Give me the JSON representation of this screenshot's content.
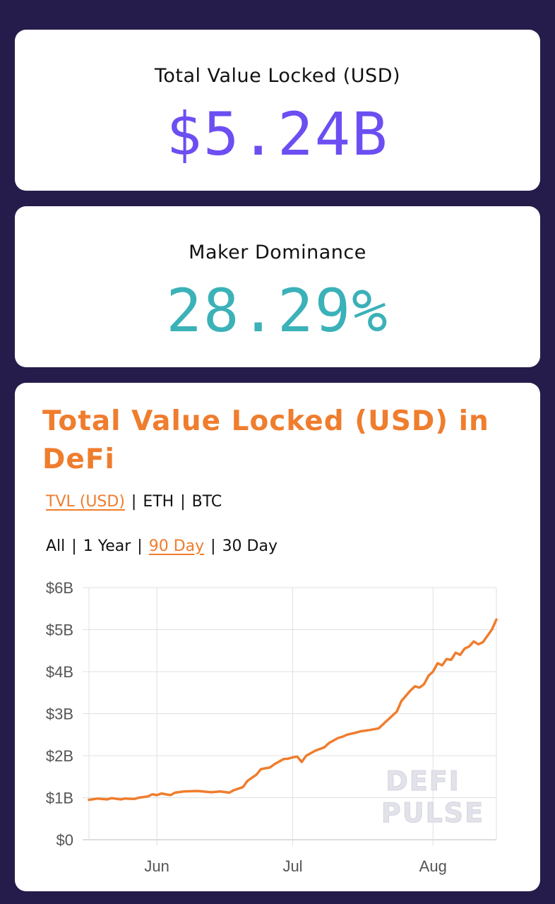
{
  "colors": {
    "background": "#261c4b",
    "card": "#ffffff",
    "tvl_value": "#6c4ef2",
    "dominance_value": "#3bb1b8",
    "accent": "#ef7d2e",
    "grid": "#e0e0e0",
    "axis_text": "#555555",
    "watermark": "#e2e2ea"
  },
  "tvl_card": {
    "label": "Total Value Locked (USD)",
    "value": "$5.24B"
  },
  "dominance_card": {
    "label": "Maker Dominance",
    "value": "28.29%"
  },
  "chart_card": {
    "title": "Total Value Locked (USD) in DeFi",
    "unit_options": [
      {
        "label": "TVL (USD)",
        "active": true
      },
      {
        "label": "ETH",
        "active": false
      },
      {
        "label": "BTC",
        "active": false
      }
    ],
    "range_options": [
      {
        "label": "All",
        "active": false
      },
      {
        "label": "1 Year",
        "active": false
      },
      {
        "label": "90 Day",
        "active": true
      },
      {
        "label": "30 Day",
        "active": false
      }
    ],
    "watermark_line1": "DEFI",
    "watermark_line2": "PULSE"
  },
  "chart_data": {
    "type": "line",
    "title": "Total Value Locked (USD) in DeFi",
    "xlabel": "",
    "ylabel": "",
    "ylim": [
      0,
      6
    ],
    "y_ticks": [
      {
        "value": 6,
        "label": "$6B"
      },
      {
        "value": 5,
        "label": "$5B"
      },
      {
        "value": 4,
        "label": "$4B"
      },
      {
        "value": 3,
        "label": "$3B"
      },
      {
        "value": 2,
        "label": "$2B"
      },
      {
        "value": 1,
        "label": "$1B"
      },
      {
        "value": 0,
        "label": "$0"
      }
    ],
    "x_range": [
      "2020-05-17",
      "2020-08-15"
    ],
    "x_ticks": [
      {
        "date": "2020-06-01",
        "label": "Jun"
      },
      {
        "date": "2020-07-01",
        "label": "Jul"
      },
      {
        "date": "2020-08-01",
        "label": "Aug"
      }
    ],
    "grid": true,
    "legend": "none",
    "series": [
      {
        "x": [
          "2020-05-17",
          "2020-05-19",
          "2020-05-21",
          "2020-05-22",
          "2020-05-24",
          "2020-05-25",
          "2020-05-27",
          "2020-05-28",
          "2020-05-30",
          "2020-05-31",
          "2020-06-01",
          "2020-06-02",
          "2020-06-04",
          "2020-06-05",
          "2020-06-07",
          "2020-06-10",
          "2020-06-13",
          "2020-06-15",
          "2020-06-17",
          "2020-06-18",
          "2020-06-20",
          "2020-06-21",
          "2020-06-23",
          "2020-06-24",
          "2020-06-26",
          "2020-06-27",
          "2020-06-29",
          "2020-06-30",
          "2020-07-01",
          "2020-07-02",
          "2020-07-03",
          "2020-07-04",
          "2020-07-06",
          "2020-07-08",
          "2020-07-09",
          "2020-07-10",
          "2020-07-11",
          "2020-07-12",
          "2020-07-13",
          "2020-07-15",
          "2020-07-16",
          "2020-07-18",
          "2020-07-20",
          "2020-07-22",
          "2020-07-24",
          "2020-07-25",
          "2020-07-27",
          "2020-07-28",
          "2020-07-29",
          "2020-07-30",
          "2020-07-31",
          "2020-08-01",
          "2020-08-02",
          "2020-08-03",
          "2020-08-04",
          "2020-08-05",
          "2020-08-06",
          "2020-08-07",
          "2020-08-08",
          "2020-08-09",
          "2020-08-10",
          "2020-08-11",
          "2020-08-12",
          "2020-08-13",
          "2020-08-14",
          "2020-08-15"
        ],
        "y": [
          0.95,
          0.98,
          0.96,
          0.99,
          0.96,
          0.98,
          0.97,
          1.0,
          1.03,
          1.08,
          1.06,
          1.1,
          1.06,
          1.12,
          1.15,
          1.16,
          1.13,
          1.15,
          1.12,
          1.18,
          1.25,
          1.4,
          1.55,
          1.68,
          1.72,
          1.8,
          1.92,
          1.93,
          1.96,
          1.98,
          1.85,
          2.0,
          2.12,
          2.2,
          2.3,
          2.36,
          2.42,
          2.45,
          2.5,
          2.55,
          2.58,
          2.61,
          2.65,
          2.85,
          3.05,
          3.3,
          3.55,
          3.65,
          3.62,
          3.7,
          3.9,
          4.0,
          4.2,
          4.15,
          4.3,
          4.28,
          4.45,
          4.4,
          4.55,
          4.6,
          4.72,
          4.65,
          4.7,
          4.85,
          5.0,
          5.24
        ]
      }
    ]
  }
}
